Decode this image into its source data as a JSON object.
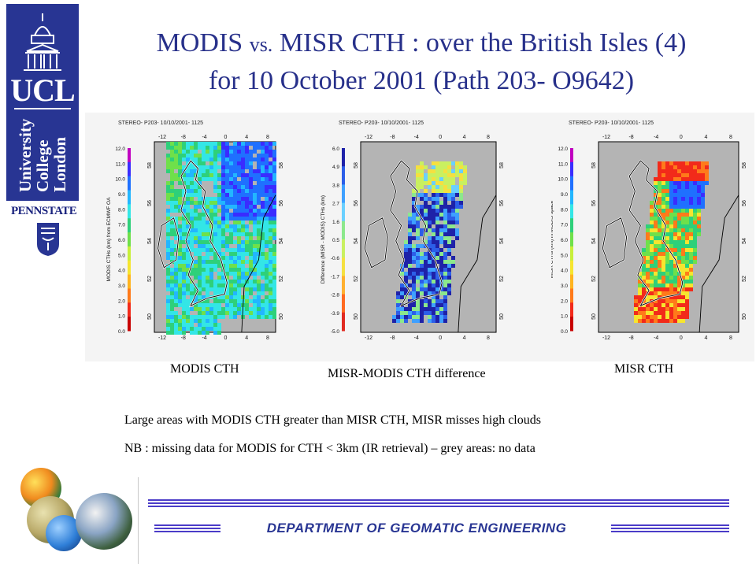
{
  "logos": {
    "ucl_short": "UCL",
    "ucl_lines": [
      "University",
      "College",
      "London"
    ],
    "pennstate": "PENNSTATE"
  },
  "title": {
    "line1_a": "MODIS ",
    "line1_vs": "vs.",
    "line1_b": " MISR CTH : over the British Isles (4)",
    "line2": "for 10 October 2001 (Path 203- O9642)"
  },
  "panels": [
    {
      "header": "STEREO- P203- 10/10/2001- 1125",
      "colorbar_label": "MODIS CTHs (km) from ECMWF OA",
      "colorbar_ticks": [
        "12.0",
        "11.0",
        "10.0",
        "9.0",
        "8.0",
        "7.0",
        "6.0",
        "5.0",
        "4.0",
        "3.0",
        "2.0",
        "1.0",
        "0.0"
      ],
      "lon_ticks": [
        "-12",
        "-8",
        "-4",
        "0",
        "4",
        "8"
      ],
      "lat_ticks": [
        "58",
        "56",
        "54",
        "52",
        "50"
      ],
      "caption": "MODIS CTH"
    },
    {
      "header": "STEREO- P203- 10/10/2001- 1125",
      "colorbar_label": "Difference (MISR - MODIS) CTHs (km)",
      "colorbar_ticks": [
        "6.0",
        "4.9",
        "3.8",
        "2.7",
        "1.6",
        "0.5",
        "-0.6",
        "-1.7",
        "-2.8",
        "-3.9",
        "-5.0"
      ],
      "lon_ticks": [
        "-12",
        "-8",
        "-4",
        "0",
        "4",
        "8"
      ],
      "lat_ticks": [
        "58",
        "56",
        "54",
        "52",
        "50"
      ],
      "caption": "MISR-MODIS CTH difference"
    },
    {
      "header": "STEREO- P203- 10/10/2001- 1125",
      "colorbar_label": "MISR CTHs (km) in MODIS space",
      "colorbar_ticks": [
        "12.0",
        "11.0",
        "10.0",
        "9.0",
        "8.0",
        "7.0",
        "6.0",
        "5.0",
        "4.0",
        "3.0",
        "2.0",
        "1.0",
        "0.0"
      ],
      "lon_ticks": [
        "-12",
        "-8",
        "-4",
        "0",
        "4",
        "8"
      ],
      "lat_ticks": [
        "58",
        "56",
        "54",
        "52",
        "50"
      ],
      "caption": "MISR CTH"
    }
  ],
  "notes": [
    "Large areas with MODIS CTH greater than MISR CTH, MISR misses high clouds",
    "NB : missing data for MODIS for CTH < 3km (IR retrieval) – grey areas: no data"
  ],
  "footer": {
    "department": "DEPARTMENT OF GEOMATIC ENGINEERING"
  },
  "colors": {
    "title": "#27308a",
    "ucl_blue": "#283593",
    "footer_line": "#4b3cc8",
    "map_grey": "#b4b4b4"
  }
}
